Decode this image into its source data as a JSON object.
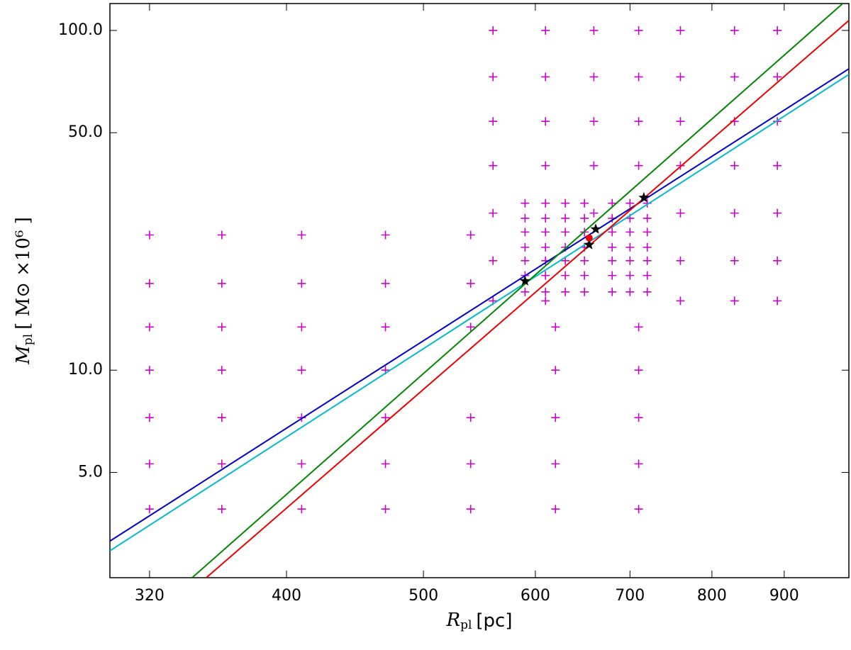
{
  "chart_data": {
    "type": "scatter",
    "xlabel": {
      "symbol": "R",
      "subscript": "pl",
      "unit": "[pc]"
    },
    "ylabel": {
      "symbol": "M",
      "subscript": "pl",
      "unit": "[ M⊙ ×10⁶ ]"
    },
    "xlog": true,
    "ylog": true,
    "xlim": [
      300,
      1000
    ],
    "ylim": [
      2.45,
      120
    ],
    "xticks": [
      320,
      400,
      500,
      600,
      700,
      800,
      900
    ],
    "yticks": [
      {
        "value": 5,
        "label": "5.0"
      },
      {
        "value": 10,
        "label": "10.0"
      },
      {
        "value": 50,
        "label": "50.0"
      },
      {
        "value": 100,
        "label": "100.0"
      }
    ],
    "series": [
      {
        "type": "scatter",
        "marker": "plus",
        "color": "#cc00cc",
        "x": [
          320,
          320,
          320,
          320,
          320,
          320,
          320,
          360,
          360,
          360,
          360,
          360,
          360,
          360,
          410,
          410,
          410,
          410,
          410,
          410,
          410,
          470,
          470,
          470,
          470,
          470,
          470,
          470,
          540,
          540,
          540,
          540,
          540,
          540,
          560,
          560,
          560,
          560,
          560,
          560,
          560,
          610,
          610,
          610,
          610,
          610,
          620,
          620,
          620,
          620,
          620,
          660,
          660,
          660,
          660,
          660,
          710,
          710,
          710,
          710,
          710,
          710,
          710,
          710,
          710,
          760,
          760,
          760,
          760,
          760,
          760,
          760,
          830,
          830,
          830,
          830,
          830,
          830,
          830,
          890,
          890,
          890,
          890,
          890,
          890,
          890,
          590,
          590,
          590,
          590,
          590,
          590,
          590,
          610,
          610,
          610,
          610,
          610,
          610,
          610,
          630,
          630,
          630,
          630,
          630,
          630,
          630,
          650,
          650,
          650,
          650,
          650,
          650,
          650,
          680,
          680,
          680,
          680,
          680,
          680,
          680,
          700,
          700,
          700,
          700,
          700,
          700,
          700,
          720,
          720,
          720,
          720,
          720,
          720,
          720
        ],
        "y": [
          25,
          18,
          13.4,
          10,
          7.25,
          5.3,
          3.9,
          25,
          18,
          13.4,
          10,
          7.25,
          5.3,
          3.9,
          25,
          18,
          13.4,
          10,
          7.25,
          5.3,
          3.9,
          25,
          18,
          13.4,
          10,
          7.25,
          5.3,
          3.9,
          25,
          18,
          13.4,
          7.25,
          5.3,
          3.9,
          100,
          73,
          54,
          40,
          29,
          21,
          16,
          100,
          73,
          54,
          40,
          16,
          13.4,
          10,
          7.25,
          5.3,
          3.9,
          100,
          73,
          54,
          40,
          29,
          100,
          73,
          54,
          40,
          13.4,
          10,
          7.25,
          5.3,
          3.9,
          100,
          73,
          54,
          40,
          29,
          21,
          16,
          100,
          73,
          54,
          40,
          29,
          21,
          16,
          100,
          73,
          54,
          40,
          29,
          21,
          16,
          31,
          28,
          25.5,
          23,
          21,
          19,
          17,
          31,
          28,
          25.5,
          23,
          21,
          19,
          17,
          31,
          28,
          25.5,
          23,
          21,
          19,
          17,
          31,
          28,
          25.5,
          23,
          21,
          19,
          17,
          31,
          28,
          25.5,
          23,
          21,
          19,
          17,
          31,
          28,
          25.5,
          23,
          21,
          19,
          17,
          31,
          28,
          25.5,
          23,
          21,
          19,
          17
        ]
      },
      {
        "type": "line",
        "color": "#0000cc",
        "x": [
          300,
          1000
        ],
        "y": [
          3.14,
          77.1
        ]
      },
      {
        "type": "line",
        "color": "#00bbcc",
        "x": [
          300,
          1000
        ],
        "y": [
          2.94,
          74.2
        ]
      },
      {
        "type": "line",
        "color": "#008800",
        "x": [
          343,
          990
        ],
        "y": [
          2.45,
          120
        ]
      },
      {
        "type": "line",
        "color": "#ee0000",
        "x": [
          351,
          1000
        ],
        "y": [
          2.45,
          107
        ]
      },
      {
        "type": "scatter",
        "marker": "star",
        "color": "#000000",
        "x": [
          590,
          662,
          655,
          716
        ],
        "y": [
          18.3,
          26.0,
          23.4,
          32.2
        ]
      },
      {
        "type": "scatter",
        "marker": "dot",
        "color": "#ee0000",
        "x": [
          655
        ],
        "y": [
          24.5
        ]
      }
    ]
  }
}
